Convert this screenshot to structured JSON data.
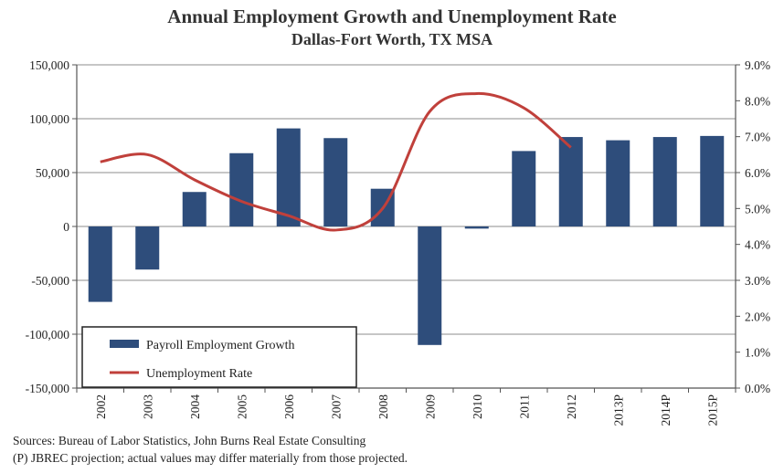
{
  "title": "Annual Employment Growth and Unemployment Rate",
  "subtitle": "Dallas-Fort Worth, TX MSA",
  "chart_data": {
    "type": "bar",
    "title": "Annual Employment Growth and Unemployment Rate",
    "subtitle": "Dallas-Fort Worth, TX MSA",
    "categories": [
      "2002",
      "2003",
      "2004",
      "2005",
      "2006",
      "2007",
      "2008",
      "2009",
      "2010",
      "2011",
      "2012",
      "2013P",
      "2014P",
      "2015P"
    ],
    "series": [
      {
        "name": "Payroll Employment Growth",
        "type": "bar",
        "axis": "left",
        "color": "#2e4d7b",
        "values": [
          -70000,
          -40000,
          32000,
          68000,
          91000,
          82000,
          35000,
          -110000,
          -2000,
          70000,
          83000,
          80000,
          83000,
          84000
        ]
      },
      {
        "name": "Unemployment Rate",
        "type": "line",
        "axis": "right",
        "color": "#c0403b",
        "values": [
          6.3,
          6.5,
          5.8,
          5.2,
          4.8,
          4.4,
          5.0,
          7.7,
          8.2,
          7.8,
          6.7,
          null,
          null,
          null
        ]
      }
    ],
    "y_left": {
      "ylim": [
        -150000,
        150000
      ],
      "ticks": [
        -150000,
        -100000,
        -50000,
        0,
        50000,
        100000,
        150000
      ],
      "tick_labels": [
        "-150,000",
        "-100,000",
        "-50,000",
        "0",
        "50,000",
        "100,000",
        "150,000"
      ]
    },
    "y_right": {
      "ylim": [
        0,
        9
      ],
      "ticks": [
        0,
        1,
        2,
        3,
        4,
        5,
        6,
        7,
        8,
        9
      ],
      "tick_labels": [
        "0.0%",
        "1.0%",
        "2.0%",
        "3.0%",
        "4.0%",
        "5.0%",
        "6.0%",
        "7.0%",
        "8.0%",
        "9.0%"
      ]
    },
    "grid": "horizontal",
    "legend_position": "bottom-left"
  },
  "sources": [
    "Sources: Bureau of Labor Statistics, John Burns Real Estate Consulting",
    "(P) JBREC projection; actual values may differ materially from those projected."
  ]
}
